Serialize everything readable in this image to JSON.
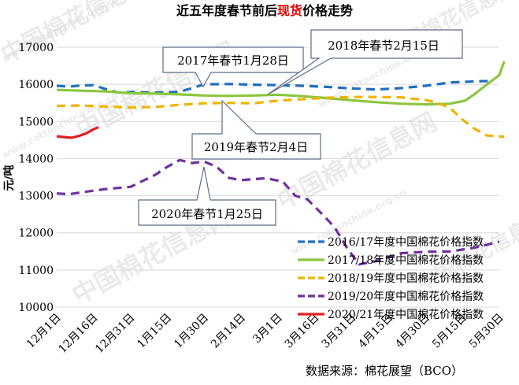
{
  "watermark": {
    "brand": "中国棉花信息网",
    "site": "www.cottonchina.org.cn"
  },
  "chart_data": {
    "type": "line",
    "title_prefix": "近五年度春节前后",
    "title_highlight": "现货",
    "title_suffix": "价格走势",
    "title_highlight_color": "#e00000",
    "ylabel": "元/吨",
    "ylim": [
      10000,
      17000
    ],
    "yticks": [
      10000,
      11000,
      12000,
      13000,
      14000,
      15000,
      16000,
      17000
    ],
    "xticks": [
      "12月1日",
      "12月16日",
      "12月31日",
      "1月15日",
      "1月30日",
      "2月14日",
      "3月1日",
      "3月16日",
      "3月31日",
      "4月15日",
      "4月30日",
      "5月15日",
      "5月30日"
    ],
    "xlim_days": [
      0,
      180
    ],
    "grid": "horizontal",
    "source": "数据来源：棉花展望（BCO）",
    "series": [
      {
        "name": "2016/17年度中国棉花价格指数",
        "color": "#1f6fbf",
        "dash": "11 7",
        "points": [
          [
            0,
            15960
          ],
          [
            5,
            15940
          ],
          [
            10,
            15970
          ],
          [
            15,
            15980
          ],
          [
            20,
            15870
          ],
          [
            25,
            15780
          ],
          [
            30,
            15790
          ],
          [
            40,
            15780
          ],
          [
            50,
            15800
          ],
          [
            55,
            15900
          ],
          [
            60,
            16000
          ],
          [
            70,
            16010
          ],
          [
            80,
            15990
          ],
          [
            90,
            15980
          ],
          [
            100,
            15960
          ],
          [
            110,
            15930
          ],
          [
            120,
            15890
          ],
          [
            130,
            15860
          ],
          [
            140,
            15900
          ],
          [
            150,
            15960
          ],
          [
            160,
            16050
          ],
          [
            170,
            16080
          ],
          [
            176,
            16090
          ]
        ]
      },
      {
        "name": "2017/18年度中国棉花价格指数",
        "color": "#8cc63f",
        "dash": "",
        "points": [
          [
            0,
            15850
          ],
          [
            10,
            15830
          ],
          [
            20,
            15810
          ],
          [
            30,
            15760
          ],
          [
            40,
            15750
          ],
          [
            50,
            15730
          ],
          [
            60,
            15700
          ],
          [
            70,
            15690
          ],
          [
            80,
            15700
          ],
          [
            90,
            15720
          ],
          [
            100,
            15680
          ],
          [
            110,
            15630
          ],
          [
            120,
            15570
          ],
          [
            130,
            15520
          ],
          [
            140,
            15480
          ],
          [
            150,
            15460
          ],
          [
            160,
            15480
          ],
          [
            166,
            15560
          ],
          [
            170,
            15740
          ],
          [
            175,
            16000
          ],
          [
            180,
            16250
          ],
          [
            182,
            16620
          ]
        ]
      },
      {
        "name": "2018/19年度中国棉花价格指数",
        "color": "#f0b400",
        "dash": "11 7",
        "points": [
          [
            0,
            15420
          ],
          [
            10,
            15430
          ],
          [
            20,
            15400
          ],
          [
            30,
            15380
          ],
          [
            40,
            15390
          ],
          [
            50,
            15450
          ],
          [
            60,
            15490
          ],
          [
            70,
            15500
          ],
          [
            80,
            15490
          ],
          [
            90,
            15560
          ],
          [
            100,
            15600
          ],
          [
            110,
            15640
          ],
          [
            120,
            15660
          ],
          [
            130,
            15660
          ],
          [
            140,
            15650
          ],
          [
            145,
            15610
          ],
          [
            150,
            15580
          ],
          [
            155,
            15500
          ],
          [
            160,
            15360
          ],
          [
            165,
            15050
          ],
          [
            170,
            14800
          ],
          [
            175,
            14620
          ],
          [
            182,
            14590
          ]
        ]
      },
      {
        "name": "2019/20年度中国棉花价格指数",
        "color": "#7030a0",
        "dash": "11 7",
        "points": [
          [
            0,
            13060
          ],
          [
            5,
            13040
          ],
          [
            10,
            13090
          ],
          [
            20,
            13180
          ],
          [
            30,
            13240
          ],
          [
            40,
            13560
          ],
          [
            45,
            13780
          ],
          [
            50,
            13960
          ],
          [
            55,
            13880
          ],
          [
            60,
            13920
          ],
          [
            65,
            13780
          ],
          [
            70,
            13480
          ],
          [
            75,
            13420
          ],
          [
            85,
            13470
          ],
          [
            92,
            13380
          ],
          [
            97,
            13000
          ],
          [
            102,
            12900
          ],
          [
            108,
            12500
          ],
          [
            113,
            12150
          ],
          [
            118,
            11600
          ],
          [
            123,
            11150
          ],
          [
            130,
            11240
          ],
          [
            140,
            11450
          ],
          [
            150,
            11490
          ],
          [
            160,
            11500
          ],
          [
            170,
            11600
          ],
          [
            180,
            11760
          ]
        ]
      },
      {
        "name": "2020/21年度中国棉花价格指数",
        "color": "#e02020",
        "dash": "",
        "points": [
          [
            0,
            14600
          ],
          [
            3,
            14580
          ],
          [
            6,
            14560
          ],
          [
            9,
            14610
          ],
          [
            12,
            14680
          ],
          [
            15,
            14790
          ],
          [
            17,
            14850
          ]
        ]
      }
    ],
    "annotations": [
      "2017年春节1月28日",
      "2018年春节2月15日",
      "2019年春节2月4日",
      "2020年春节1月25日"
    ]
  }
}
